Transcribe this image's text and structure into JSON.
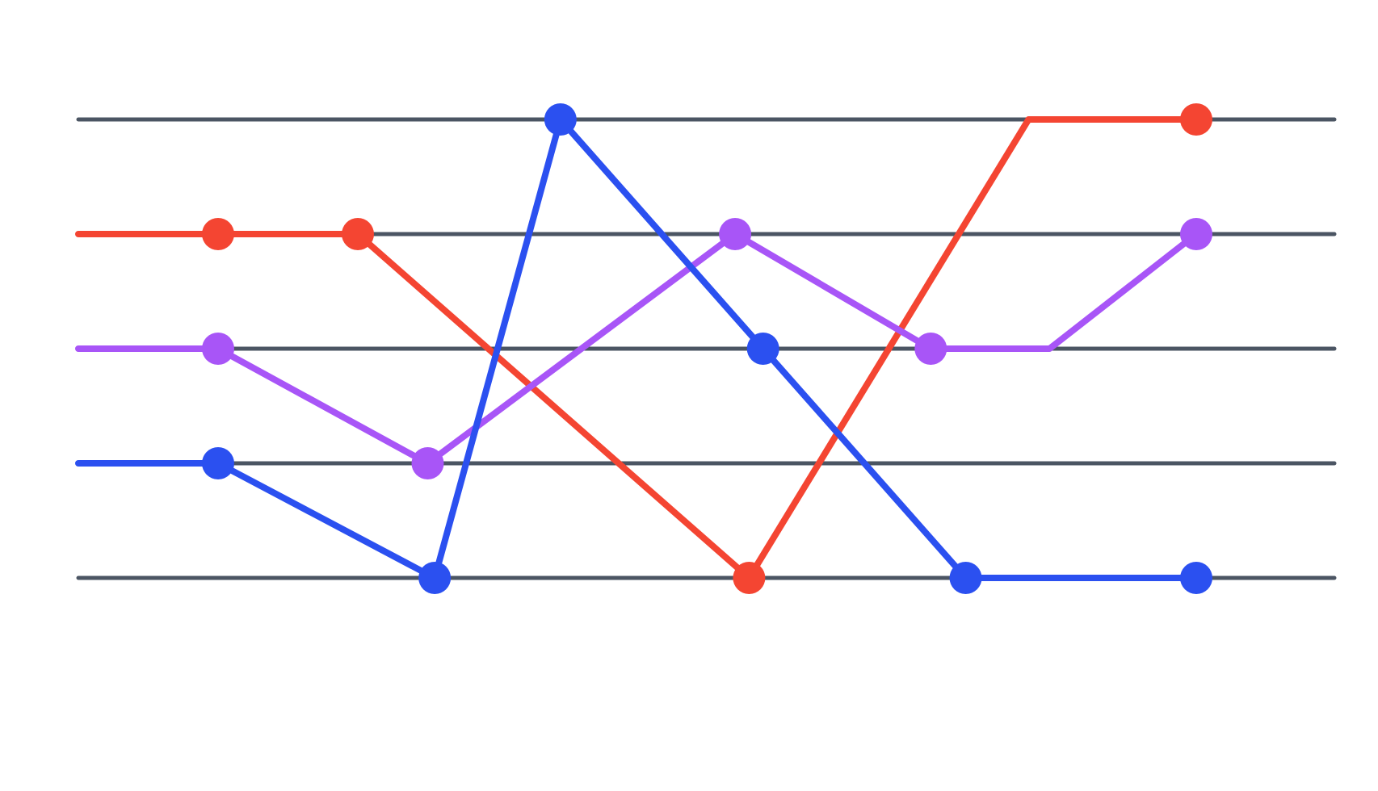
{
  "chart_data": {
    "type": "line",
    "title": "",
    "xlabel": "",
    "ylabel": "",
    "grid": true,
    "legend": "none",
    "xlim": [
      0,
      16.6
    ],
    "ylim": [
      0,
      4
    ],
    "levels": [
      0,
      1,
      2,
      3,
      4
    ],
    "colors": {
      "grid": "#4b5563",
      "red": "#f44532",
      "purple": "#a855f7",
      "blue": "#2b50f0"
    },
    "series": [
      {
        "color": "#f44532",
        "points": [
          {
            "x": 0.0,
            "y": 3,
            "marker": false
          },
          {
            "x": 2.0,
            "y": 3,
            "marker": true
          },
          {
            "x": 4.0,
            "y": 3,
            "marker": true
          },
          {
            "x": 9.6,
            "y": 0,
            "marker": true
          },
          {
            "x": 13.6,
            "y": 4,
            "marker": false
          },
          {
            "x": 16.0,
            "y": 4,
            "marker": true
          }
        ]
      },
      {
        "color": "#a855f7",
        "points": [
          {
            "x": 0.0,
            "y": 2,
            "marker": false
          },
          {
            "x": 2.0,
            "y": 2,
            "marker": true
          },
          {
            "x": 5.0,
            "y": 1,
            "marker": true
          },
          {
            "x": 9.4,
            "y": 3,
            "marker": true
          },
          {
            "x": 12.2,
            "y": 2,
            "marker": true
          },
          {
            "x": 13.9,
            "y": 2,
            "marker": false
          },
          {
            "x": 16.0,
            "y": 3,
            "marker": true
          }
        ]
      },
      {
        "color": "#2b50f0",
        "points": [
          {
            "x": 0.0,
            "y": 1,
            "marker": false
          },
          {
            "x": 2.0,
            "y": 1,
            "marker": true
          },
          {
            "x": 5.1,
            "y": 0,
            "marker": true
          },
          {
            "x": 6.9,
            "y": 4,
            "marker": true
          },
          {
            "x": 9.8,
            "y": 2,
            "marker": true
          },
          {
            "x": 12.7,
            "y": 0,
            "marker": true
          },
          {
            "x": 16.0,
            "y": 0,
            "marker": true
          }
        ]
      }
    ]
  }
}
